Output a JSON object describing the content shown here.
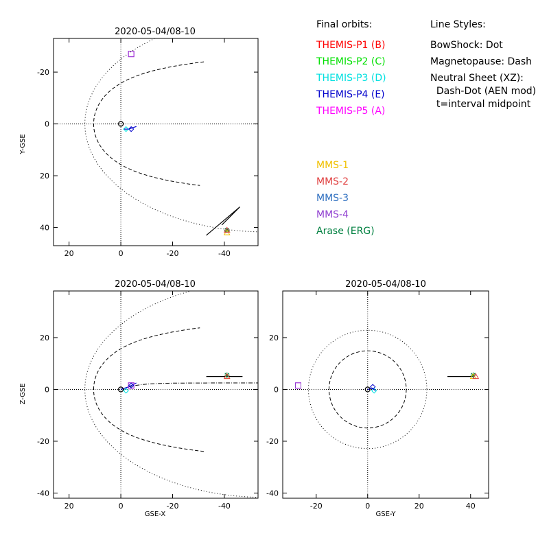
{
  "legend": {
    "orbits_title": "Final orbits:",
    "orbits": [
      {
        "label": "THEMIS-P1 (B)",
        "color": "#ff0000"
      },
      {
        "label": "THEMIS-P2 (C)",
        "color": "#00e000"
      },
      {
        "label": "THEMIS-P3 (D)",
        "color": "#00e0e0"
      },
      {
        "label": "THEMIS-P4 (E)",
        "color": "#0000cc"
      },
      {
        "label": "THEMIS-P5 (A)",
        "color": "#ff00ff"
      }
    ],
    "mms": [
      {
        "label": "MMS-1",
        "color": "#f0c000"
      },
      {
        "label": "MMS-2",
        "color": "#e04040"
      },
      {
        "label": "MMS-3",
        "color": "#3070c0"
      },
      {
        "label": "MMS-4",
        "color": "#9040d0"
      },
      {
        "label": "Arase (ERG)",
        "color": "#008040"
      }
    ],
    "styles_title": "Line Styles:",
    "styles": [
      "BowShock: Dot",
      "Magnetopause: Dash",
      "Neutral Sheet (XZ):",
      "  Dash-Dot (AEN mod)",
      "  t=interval midpoint"
    ]
  },
  "chart_data": [
    {
      "type": "scatter",
      "title": "2020-05-04/08-10",
      "xlabel": "",
      "ylabel": "Y-GSE",
      "xlim": [
        26,
        -53
      ],
      "ylim": [
        -33,
        47
      ],
      "y_inverted": true,
      "xticks": [
        20,
        0,
        -20,
        -40
      ],
      "yticks": [
        -20,
        0,
        20,
        40
      ],
      "tick_labels_x": [
        "20",
        "0",
        "-20",
        "-40"
      ],
      "tick_labels_y": [
        "-20",
        "0",
        "20",
        "40"
      ],
      "spacecraft": [
        {
          "name": "THEMIS-P5 (A)",
          "x": -4,
          "y": -27
        },
        {
          "name": "MMS-4",
          "x": -4,
          "y": -27
        },
        {
          "name": "THEMIS-P1 (B)",
          "x": 0,
          "y": 0
        },
        {
          "name": "THEMIS-P3 (D)",
          "x": -2,
          "y": 2
        },
        {
          "name": "THEMIS-P4 (E)",
          "x": -4,
          "y": 2
        },
        {
          "name": "Arase (ERG)",
          "x": -41,
          "y": 41
        },
        {
          "name": "MMS-1",
          "x": -41,
          "y": 42
        },
        {
          "name": "MMS-2",
          "x": -41,
          "y": 41
        }
      ]
    },
    {
      "type": "scatter",
      "title": "2020-05-04/08-10",
      "xlabel": "GSE-X",
      "ylabel": "Z-GSE",
      "xlim": [
        26,
        -53
      ],
      "ylim": [
        -42,
        38
      ],
      "xticks": [
        20,
        0,
        -20,
        -40
      ],
      "yticks": [
        -40,
        -20,
        0,
        20
      ],
      "tick_labels_x": [
        "20",
        "0",
        "-20",
        "-40"
      ],
      "tick_labels_y": [
        "-40",
        "-20",
        "0",
        "20"
      ],
      "spacecraft": [
        {
          "name": "THEMIS-P5 (A)",
          "x": -4,
          "y": 1.5
        },
        {
          "name": "MMS-4",
          "x": -4,
          "y": 1.5
        },
        {
          "name": "THEMIS-P1 (B)",
          "x": 0,
          "y": 0
        },
        {
          "name": "THEMIS-P3 (D)",
          "x": -2,
          "y": -0.5
        },
        {
          "name": "THEMIS-P4 (E)",
          "x": -4,
          "y": 1.5
        },
        {
          "name": "Arase (ERG)",
          "x": -41,
          "y": 5.5
        },
        {
          "name": "MMS-1",
          "x": -41,
          "y": 5
        },
        {
          "name": "MMS-2",
          "x": -41,
          "y": 5
        }
      ]
    },
    {
      "type": "scatter",
      "title": "2020-05-04/08-10",
      "xlabel": "GSE-Y",
      "ylabel": "",
      "xlim": [
        -33,
        47
      ],
      "ylim": [
        -42,
        38
      ],
      "xticks": [
        -20,
        0,
        20,
        40
      ],
      "yticks": [
        -40,
        -20,
        0,
        20
      ],
      "tick_labels_x": [
        "-20",
        "0",
        "20",
        "40"
      ],
      "tick_labels_y": [
        "-40",
        "-20",
        "0",
        "20"
      ],
      "spacecraft": [
        {
          "name": "THEMIS-P5 (A)",
          "x": -27,
          "y": 1.5
        },
        {
          "name": "MMS-4",
          "x": -27,
          "y": 1.5
        },
        {
          "name": "THEMIS-P1 (B)",
          "x": 0,
          "y": 0
        },
        {
          "name": "THEMIS-P3 (D)",
          "x": 2.5,
          "y": -0.5
        },
        {
          "name": "THEMIS-P4 (E)",
          "x": 2,
          "y": 1
        },
        {
          "name": "Arase (ERG)",
          "x": 41,
          "y": 5.5
        },
        {
          "name": "MMS-1",
          "x": 41,
          "y": 5
        },
        {
          "name": "MMS-2",
          "x": 42,
          "y": 5
        }
      ]
    }
  ]
}
